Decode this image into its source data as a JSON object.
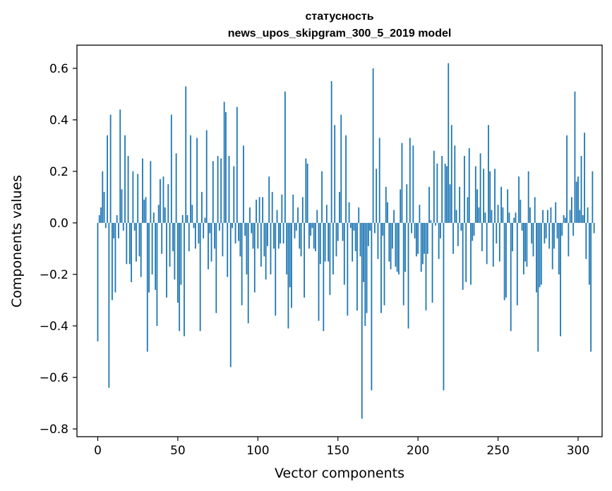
{
  "chart_data": {
    "type": "bar",
    "title": "статусность",
    "subtitle": "news_upos_skipgram_300_5_2019 model",
    "xlabel": "Vector components",
    "ylabel": "Components values",
    "xlim": [
      -13,
      315
    ],
    "ylim": [
      -0.83,
      0.69
    ],
    "xticks": [
      0,
      50,
      100,
      150,
      200,
      250,
      300
    ],
    "yticks": [
      -0.8,
      -0.6,
      -0.4,
      -0.2,
      0.0,
      0.2,
      0.4,
      0.6
    ],
    "ytick_labels": [
      "−0.8",
      "−0.6",
      "−0.4",
      "−0.2",
      "0.0",
      "0.2",
      "0.4",
      "0.6"
    ],
    "bar_color": "#1f77b4",
    "grid": false,
    "legend": "none",
    "values": [
      -0.46,
      0.03,
      0.06,
      0.2,
      0.12,
      -0.02,
      0.34,
      -0.64,
      0.42,
      -0.3,
      -0.06,
      -0.27,
      0.03,
      -0.06,
      0.44,
      0.13,
      -0.03,
      0.34,
      -0.16,
      0.26,
      -0.16,
      -0.23,
      0.2,
      -0.03,
      -0.15,
      0.19,
      -0.13,
      -0.21,
      0.25,
      0.09,
      0.1,
      -0.5,
      -0.27,
      0.24,
      -0.2,
      0.04,
      -0.26,
      -0.4,
      0.07,
      0.17,
      -0.12,
      0.18,
      0.06,
      -0.29,
      0.15,
      -0.17,
      0.42,
      -0.11,
      -0.22,
      0.27,
      -0.31,
      -0.42,
      -0.24,
      0.03,
      -0.44,
      0.53,
      0.03,
      -0.11,
      0.34,
      0.07,
      -0.02,
      -0.1,
      0.33,
      -0.08,
      -0.42,
      0.12,
      -0.06,
      0.02,
      0.36,
      -0.18,
      -0.04,
      -0.15,
      0.24,
      -0.1,
      -0.35,
      0.26,
      -0.03,
      0.25,
      -0.13,
      0.47,
      0.43,
      -0.21,
      0.26,
      -0.56,
      -0.02,
      0.22,
      -0.08,
      0.45,
      -0.07,
      -0.13,
      -0.32,
      0.3,
      -0.05,
      -0.2,
      -0.39,
      0.06,
      -0.04,
      -0.1,
      -0.27,
      0.09,
      -0.1,
      0.1,
      -0.17,
      0.1,
      -0.13,
      -0.22,
      -0.09,
      0.18,
      -0.2,
      0.12,
      -0.1,
      -0.36,
      0.05,
      -0.1,
      -0.08,
      0.11,
      -0.08,
      0.51,
      -0.2,
      -0.41,
      -0.25,
      -0.33,
      0.11,
      -0.06,
      -0.03,
      0.06,
      -0.1,
      -0.13,
      0.1,
      -0.29,
      0.25,
      0.23,
      -0.1,
      -0.05,
      -0.02,
      -0.1,
      -0.11,
      0.05,
      -0.38,
      -0.16,
      0.2,
      -0.42,
      -0.15,
      0.07,
      -0.15,
      -0.28,
      0.55,
      -0.2,
      0.38,
      -0.13,
      -0.07,
      0.12,
      0.42,
      -0.07,
      -0.24,
      0.34,
      -0.36,
      0.08,
      -0.02,
      -0.15,
      -0.03,
      -0.11,
      -0.34,
      0.06,
      -0.13,
      -0.76,
      -0.23,
      -0.4,
      -0.35,
      -0.09,
      -0.03,
      -0.65,
      0.6,
      -0.04,
      0.21,
      -0.14,
      0.33,
      -0.35,
      -0.05,
      -0.32,
      0.14,
      0.08,
      -0.15,
      -0.18,
      -0.1,
      0.05,
      -0.17,
      -0.19,
      -0.2,
      0.13,
      0.31,
      -0.32,
      -0.19,
      0.15,
      -0.41,
      0.33,
      -0.04,
      0.3,
      -0.06,
      -0.13,
      -0.12,
      0.07,
      -0.19,
      -0.16,
      -0.12,
      -0.34,
      -0.12,
      0.14,
      0.01,
      -0.31,
      0.28,
      -0.01,
      0.23,
      -0.14,
      -0.06,
      0.26,
      -0.65,
      0.23,
      0.22,
      0.62,
      0.15,
      0.38,
      -0.12,
      0.3,
      0.05,
      -0.09,
      0.14,
      -0.03,
      -0.26,
      0.26,
      -0.23,
      0.1,
      0.29,
      -0.24,
      -0.07,
      -0.05,
      0.22,
      0.13,
      0.06,
      0.27,
      -0.11,
      0.21,
      0.04,
      -0.16,
      0.38,
      0.2,
      0.05,
      -0.17,
      0.21,
      -0.08,
      0.07,
      -0.15,
      0.14,
      0.06,
      -0.3,
      -0.29,
      0.13,
      0.04,
      -0.42,
      -0.11,
      0.02,
      0.04,
      -0.32,
      0.18,
      0.09,
      -0.03,
      -0.2,
      -0.15,
      -0.17,
      0.2,
      0.06,
      -0.08,
      -0.13,
      0.1,
      -0.27,
      -0.5,
      -0.25,
      -0.24,
      0.05,
      -0.08,
      -0.06,
      0.05,
      -0.1,
      0.06,
      -0.18,
      -0.1,
      0.08,
      -0.06,
      -0.2,
      -0.44,
      -0.05,
      0.03,
      0.02,
      0.34,
      -0.13,
      0.05,
      0.1,
      -0.05,
      0.51,
      0.16,
      0.18,
      0.05,
      0.26,
      0.03,
      0.35,
      -0.14,
      0.06,
      -0.24,
      -0.5,
      0.2,
      -0.04
    ]
  }
}
